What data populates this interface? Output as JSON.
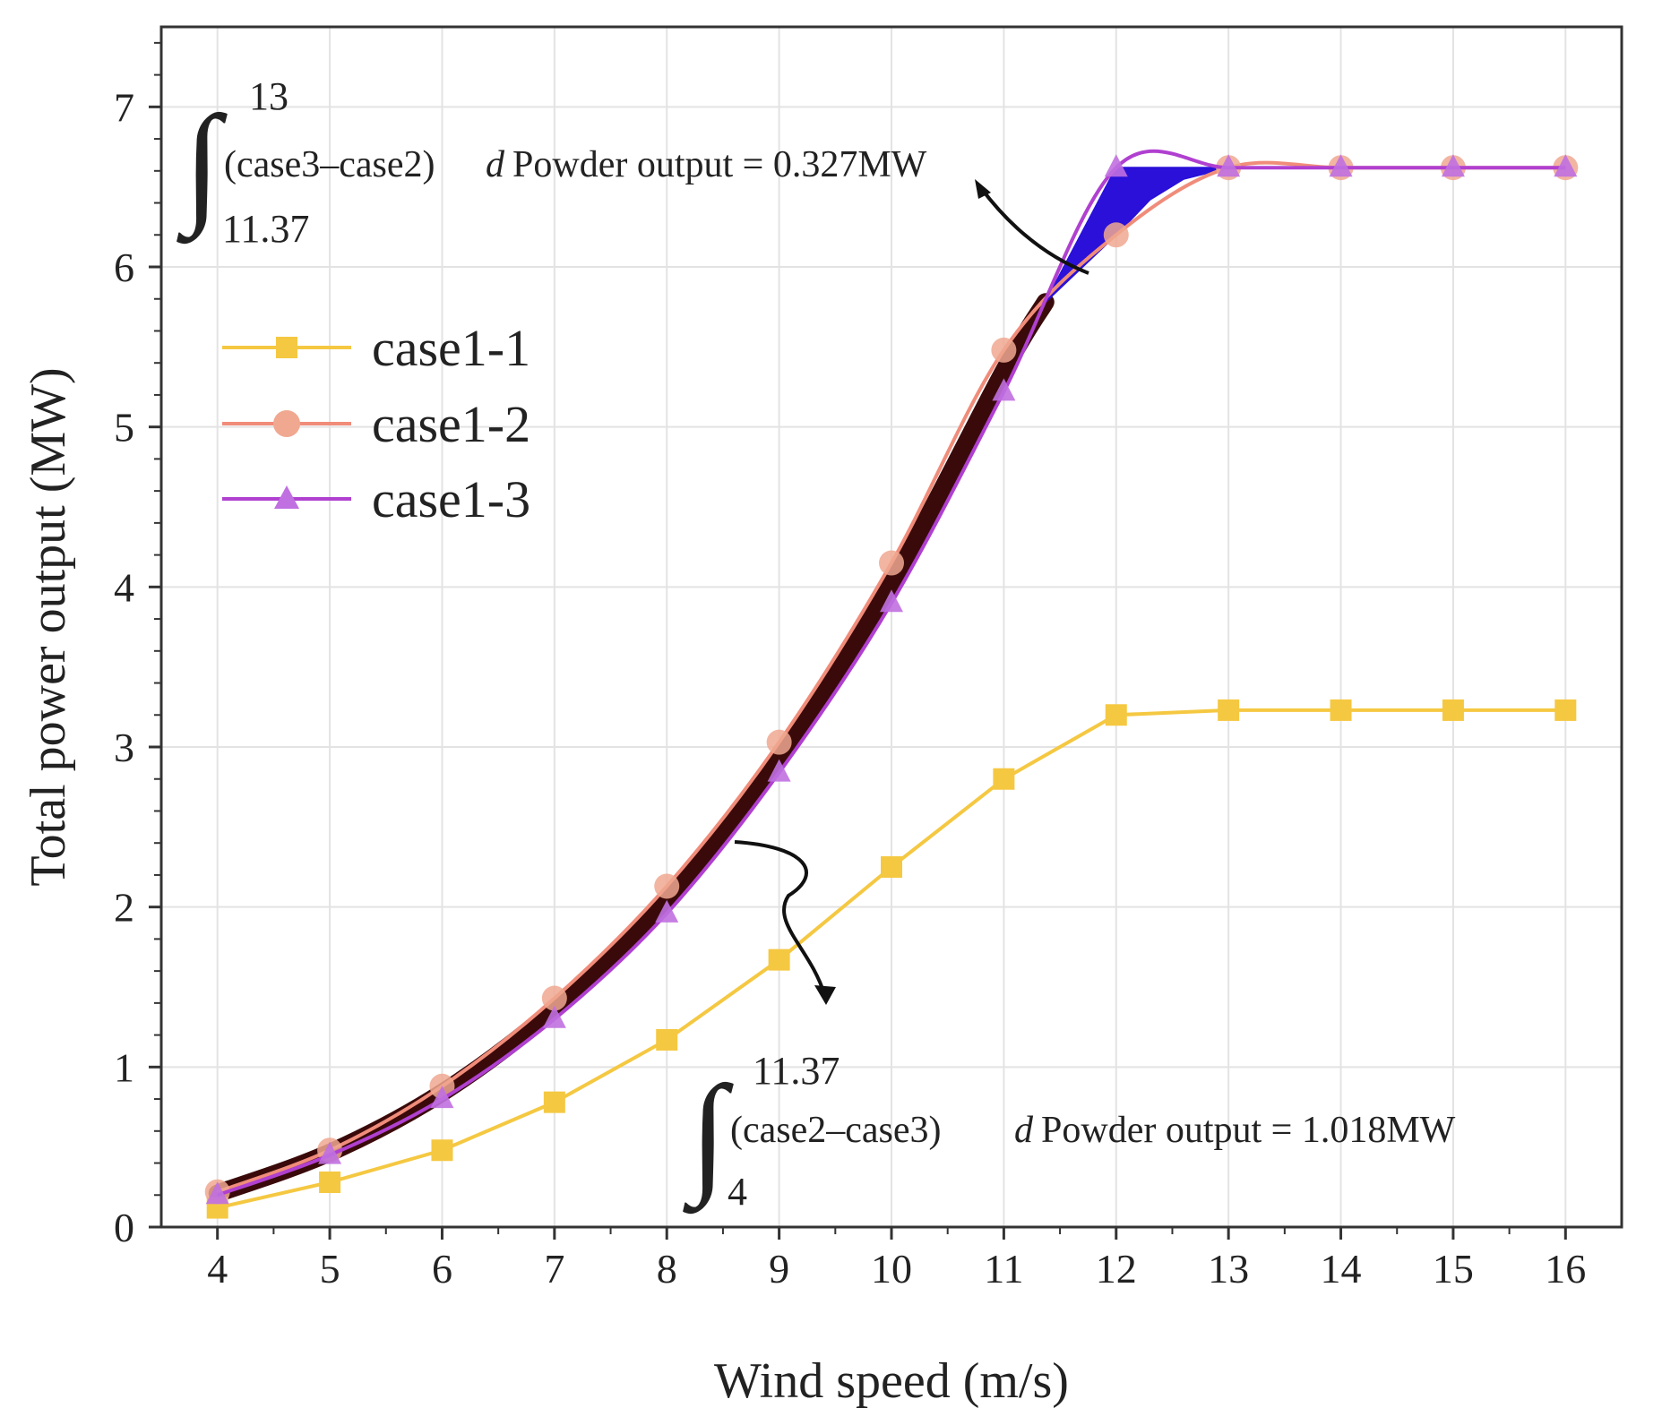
{
  "chart_data": {
    "type": "line",
    "title": "",
    "xlabel": "Wind speed (m/s)",
    "ylabel": "Total power output (MW)",
    "xlim": [
      3.5,
      16.5
    ],
    "ylim": [
      0,
      7.5
    ],
    "xticks": [
      4,
      5,
      6,
      7,
      8,
      9,
      10,
      11,
      12,
      13,
      14,
      15,
      16
    ],
    "yticks": [
      0,
      1,
      2,
      3,
      4,
      5,
      6,
      7
    ],
    "xtick_labels": [
      "4",
      "5",
      "6",
      "7",
      "8",
      "9",
      "10",
      "11",
      "12",
      "13",
      "14",
      "15",
      "16"
    ],
    "ytick_labels": [
      "0",
      "1",
      "2",
      "3",
      "4",
      "5",
      "6",
      "7"
    ],
    "grid": true,
    "legend_position": "top-left",
    "x": [
      4,
      5,
      6,
      7,
      8,
      9,
      10,
      11,
      12,
      13,
      14,
      15,
      16
    ],
    "series": [
      {
        "name": "case1-1",
        "marker": "square",
        "color": "#f5c842",
        "values": [
          0.12,
          0.28,
          0.48,
          0.78,
          1.17,
          1.67,
          2.25,
          2.8,
          3.2,
          3.23,
          3.23,
          3.23,
          3.23
        ]
      },
      {
        "name": "case1-2",
        "marker": "circle",
        "color": "#f08c7a",
        "values": [
          0.22,
          0.48,
          0.88,
          1.43,
          2.13,
          3.03,
          4.15,
          5.48,
          6.2,
          6.62,
          6.62,
          6.62,
          6.62
        ]
      },
      {
        "name": "case1-3",
        "marker": "triangle",
        "color": "#b040d0",
        "values": [
          0.2,
          0.45,
          0.8,
          1.3,
          1.96,
          2.84,
          3.9,
          5.22,
          6.62,
          6.62,
          6.62,
          6.62,
          6.62
        ]
      }
    ],
    "highlight": {
      "band_color": "#3a0a0a",
      "fill_color": "#2a10d8",
      "band_x_range": [
        4,
        11.37
      ],
      "fill_x_range": [
        11.37,
        13
      ]
    },
    "annotations": [
      {
        "id": "upper",
        "upper_limit": "13",
        "lower_limit": "11.37",
        "integrand": "(case3–case2)",
        "differential": "d",
        "text": "Powder output = 0.327MW"
      },
      {
        "id": "lower",
        "upper_limit": "11.37",
        "lower_limit": "4",
        "integrand": "(case2–case3)",
        "differential": "d",
        "text": "Powder output = 1.018MW"
      }
    ]
  }
}
